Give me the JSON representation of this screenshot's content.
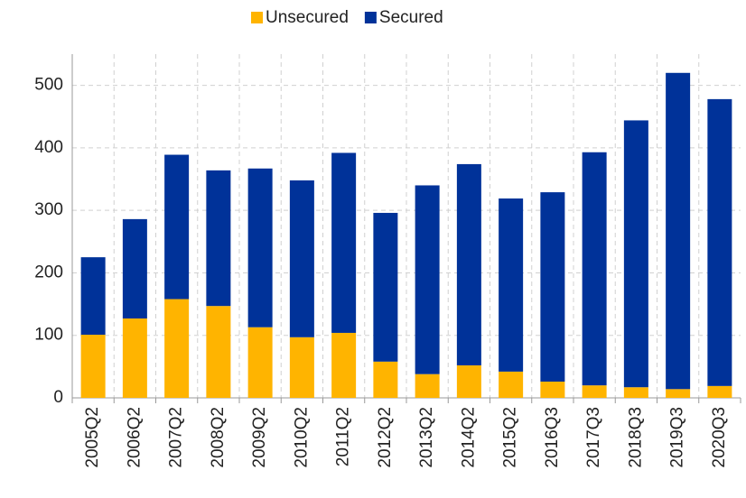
{
  "chart_data": {
    "type": "stacked_bar",
    "categories": [
      "2005Q2",
      "2006Q2",
      "2007Q2",
      "2008Q2",
      "2009Q2",
      "2010Q2",
      "2011Q2",
      "2012Q2",
      "2013Q2",
      "2014Q2",
      "2015Q2",
      "2016Q3",
      "2017Q3",
      "2018Q3",
      "2019Q3",
      "2020Q3"
    ],
    "series": [
      {
        "name": "Unsecured",
        "color": "#ffb400",
        "values": [
          101,
          127,
          158,
          147,
          113,
          97,
          104,
          58,
          38,
          52,
          42,
          26,
          20,
          17,
          14,
          19
        ]
      },
      {
        "name": "Secured",
        "color": "#003299",
        "values": [
          124,
          159,
          231,
          217,
          254,
          251,
          288,
          238,
          302,
          322,
          277,
          303,
          373,
          427,
          506,
          459
        ]
      }
    ],
    "ylim": [
      0,
      550
    ],
    "yticks": [
      0,
      100,
      200,
      300,
      400,
      500
    ],
    "grid": true,
    "legend": "top"
  }
}
